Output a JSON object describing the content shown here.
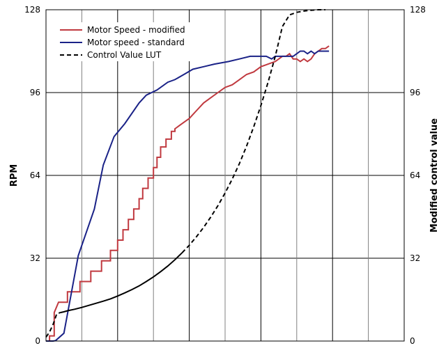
{
  "chart_data": {
    "type": "line",
    "ylabel": "RPM",
    "y2label": "Modified control value",
    "ylim": [
      0,
      128
    ],
    "y2lim": [
      0,
      128
    ],
    "xlim": [
      0,
      100
    ],
    "yticks": [
      0,
      32,
      64,
      96,
      128
    ],
    "y2ticks": [
      0,
      32,
      64,
      96,
      128
    ],
    "x_gridlines": [
      10,
      20,
      30,
      40,
      50,
      60,
      70,
      80,
      90,
      100
    ],
    "x_gridlines_major": [
      20,
      40,
      60,
      80,
      100
    ],
    "grid": true,
    "legend_position": "top-left",
    "series": [
      {
        "name": "Motor Speed - modified",
        "axis": "left",
        "color": "#c0393f",
        "dash": "solid",
        "x": [
          0.0,
          1.0,
          1.0,
          2.3,
          2.3,
          3.5,
          6.0,
          6.0,
          9.5,
          9.5,
          12.5,
          12.5,
          15.5,
          15.5,
          18.0,
          18.0,
          20.0,
          20.0,
          21.5,
          21.5,
          23.0,
          23.0,
          24.5,
          24.5,
          26.0,
          26.0,
          27.0,
          27.0,
          28.5,
          28.5,
          30.0,
          30.0,
          31.0,
          31.0,
          32.0,
          32.0,
          33.5,
          33.5,
          35.0,
          35.0,
          36.0,
          36.0,
          38.0,
          40.0,
          42.0,
          44.0,
          46.0,
          48.0,
          50.0,
          52.0,
          54.0,
          56.0,
          58.0,
          60.0,
          62.0,
          64.0,
          66.0,
          67.0,
          68.0,
          69.0,
          70.0,
          71.0,
          72.0,
          73.0,
          74.0,
          75.0,
          76.0,
          77.0,
          78.0,
          79.0
        ],
        "y": [
          0,
          0,
          2,
          2,
          11,
          15,
          15,
          19,
          19,
          23,
          23,
          27,
          27,
          31,
          31,
          35,
          35,
          39,
          39,
          43,
          43,
          47,
          47,
          51,
          51,
          55,
          55,
          59,
          59,
          63,
          63,
          67,
          67,
          71,
          71,
          75,
          75,
          78,
          78,
          81,
          81,
          82,
          84,
          86,
          89,
          92,
          94,
          96,
          98,
          99,
          101,
          103,
          104,
          106,
          107,
          108,
          110,
          110,
          111,
          109,
          109,
          108,
          109,
          108,
          109,
          111,
          112,
          113,
          113,
          114
        ]
      },
      {
        "name": "Motor speed - standard",
        "axis": "left",
        "color": "#1a2287",
        "dash": "solid",
        "x": [
          0.0,
          2.0,
          2.7,
          5.0,
          9.0,
          13.5,
          16.0,
          19.0,
          22.0,
          26.0,
          28.0,
          31.0,
          34.0,
          36.0,
          38.5,
          41.0,
          44.0,
          47.0,
          51.0,
          54.0,
          57.0,
          60.0,
          61.5,
          63.0,
          64.0,
          65.0,
          66.0,
          67.0,
          68.0,
          69.0,
          70.0,
          71.0,
          72.0,
          73.0,
          74.0,
          75.0,
          76.0,
          77.0,
          78.0,
          79.0
        ],
        "y": [
          0,
          0,
          0.2,
          3,
          33,
          51,
          68,
          79,
          84,
          92,
          95,
          97,
          100,
          101,
          103,
          105,
          106,
          107,
          108,
          109,
          110,
          110,
          110,
          109,
          110,
          110,
          110,
          110,
          110,
          110,
          111,
          112,
          112,
          111,
          112,
          111,
          112,
          112,
          112,
          112
        ]
      },
      {
        "name": "Control Value LUT",
        "axis": "right",
        "color": "#000000",
        "dash": "6,4",
        "x": [
          0,
          1,
          2,
          3,
          4,
          5,
          6,
          8,
          10,
          12,
          14,
          16,
          18,
          20,
          22,
          24,
          26,
          28,
          30,
          32,
          34,
          36,
          38,
          40,
          42,
          44,
          46,
          48,
          50,
          52,
          54,
          56,
          58,
          60,
          62,
          64,
          66,
          68,
          70,
          72,
          74,
          76,
          78
        ],
        "y": [
          1.5,
          3.5,
          6.5,
          10.5,
          11.0,
          11.3,
          11.7,
          12.3,
          13.0,
          13.8,
          14.6,
          15.4,
          16.3,
          17.4,
          18.6,
          19.9,
          21.3,
          23.0,
          24.8,
          26.8,
          29.0,
          31.4,
          34.1,
          37.0,
          40.3,
          43.9,
          47.9,
          52.3,
          57.2,
          62.6,
          68.6,
          75.3,
          82.8,
          91.0,
          100.0,
          110.0,
          121.5,
          126.0,
          127.0,
          127.5,
          127.8,
          128.0,
          128.0
        ],
        "solid_segment_index_range": [
          4,
          22
        ]
      }
    ]
  }
}
